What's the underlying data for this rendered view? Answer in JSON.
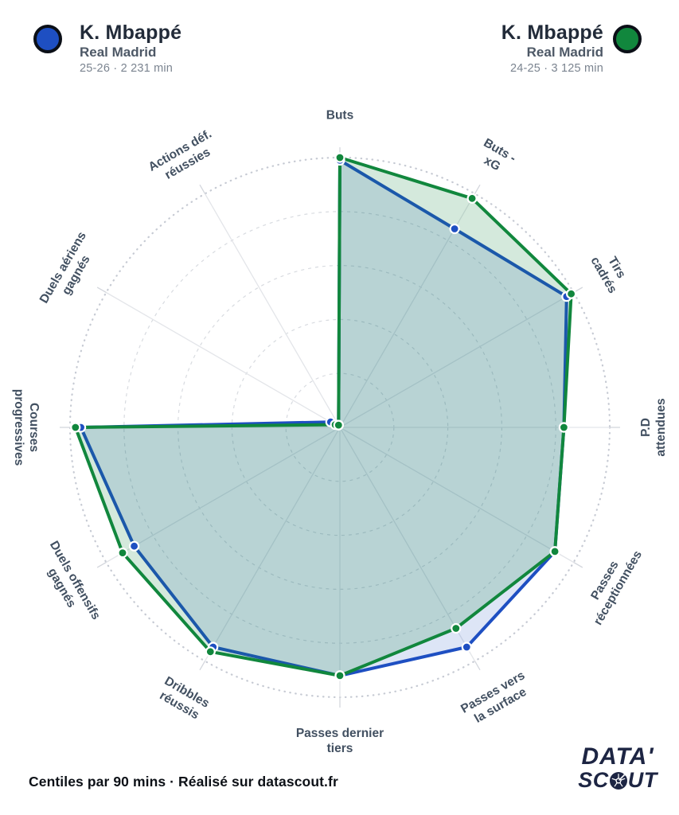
{
  "players": [
    {
      "name": "K. Mbappé",
      "team": "Real Madrid",
      "season": "25-26 · 2 231 min",
      "color": "#1e4fc2",
      "fill": "rgba(30,79,194,0.15)"
    },
    {
      "name": "K. Mbappé",
      "team": "Real Madrid",
      "season": "24-25 · 3 125 min",
      "color": "#11873d",
      "fill": "rgba(17,135,61,0.18)"
    }
  ],
  "chart_data": {
    "type": "radar",
    "title": "K. Mbappé 25-26 vs K. Mbappé 24-25 (Real Madrid)",
    "units": "centiles per 90 mins (0-100)",
    "scale": {
      "min": 0,
      "max": 100,
      "rings": [
        20,
        40,
        60,
        80
      ],
      "outer_ring": 100,
      "grid": "dashed circles + radial spokes"
    },
    "categories": [
      "Buts",
      "Buts - xG",
      "Tirs cadrés",
      "P.D attendues",
      "Passes réceptionnées",
      "Passes vers la surface",
      "Passes dernier tiers",
      "Dribbles réussis",
      "Duels offensifs gagnés",
      "Courses progressives",
      "Duels aériens gagnés",
      "Actions déf. réussies"
    ],
    "category_lines": [
      [
        "Buts"
      ],
      [
        "Buts -",
        "xG"
      ],
      [
        "Tirs",
        "cadrés"
      ],
      [
        "P.D",
        "attendues"
      ],
      [
        "Passes",
        "réceptionnées"
      ],
      [
        "Passes vers",
        "la surface"
      ],
      [
        "Passes dernier",
        "tiers"
      ],
      [
        "Dribbles",
        "réussis"
      ],
      [
        "Duels offensifs",
        "gagnés"
      ],
      [
        "Courses",
        "progressives"
      ],
      [
        "Duels aériens",
        "gagnés"
      ],
      [
        "Actions déf.",
        "réussies"
      ]
    ],
    "series": [
      {
        "name": "K. Mbappé 25-26",
        "values": [
          99,
          85,
          97,
          83,
          92,
          94,
          92,
          94,
          88,
          96,
          4,
          1
        ]
      },
      {
        "name": "K. Mbappé 24-25",
        "values": [
          100,
          98,
          99,
          83,
          92,
          86,
          92,
          96,
          93,
          98,
          2,
          1
        ]
      }
    ],
    "legend_position": "top"
  },
  "footer": {
    "note": "Centiles par 90 mins · Réalisé sur datascout.fr"
  },
  "logo": {
    "line1": "DATA'",
    "line2_prefix": "SC",
    "line2_suffix": "UT"
  }
}
